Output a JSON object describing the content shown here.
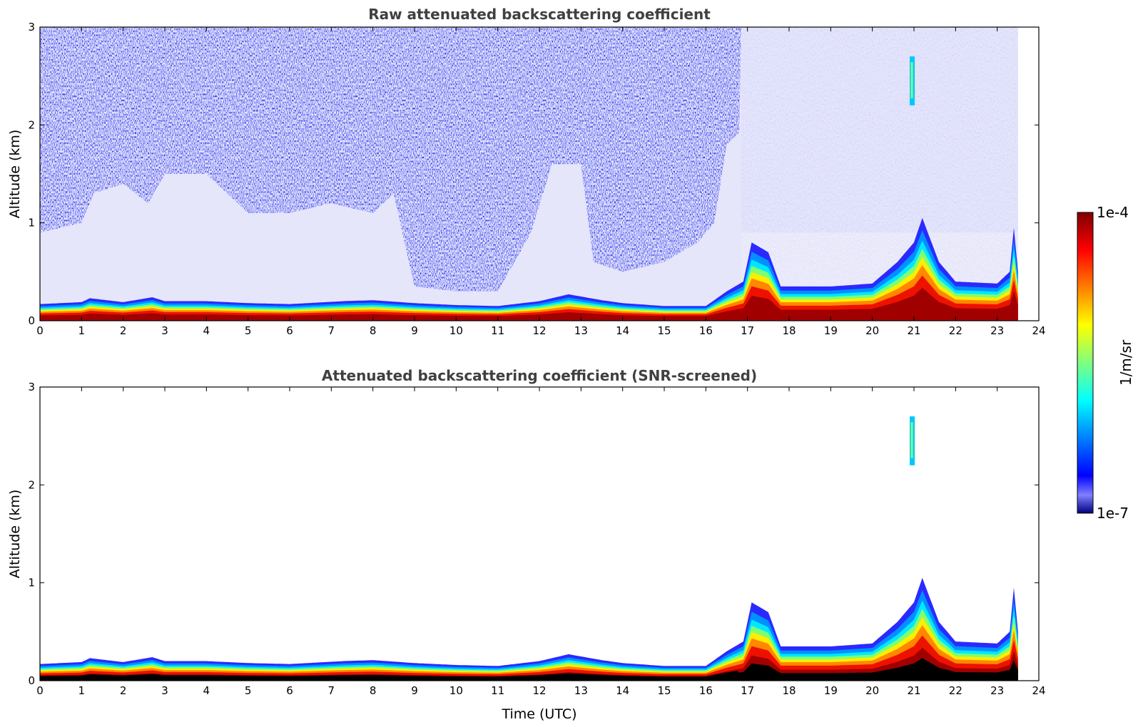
{
  "chart_data": [
    {
      "type": "heatmap",
      "title": "Raw attenuated backscattering coefficient",
      "xlabel": "",
      "ylabel": "Altitude (km)",
      "xlim": [
        0,
        24
      ],
      "ylim": [
        0,
        3
      ],
      "x_ticks": [
        "0",
        "1",
        "2",
        "3",
        "4",
        "5",
        "6",
        "7",
        "8",
        "9",
        "10",
        "11",
        "12",
        "13",
        "14",
        "15",
        "16",
        "17",
        "18",
        "19",
        "20",
        "21",
        "22",
        "23",
        "24"
      ],
      "y_ticks": [
        "0",
        "1",
        "2",
        "3"
      ],
      "scale": "log",
      "color_range": [
        1e-07,
        0.0001
      ],
      "layers": {
        "boundary_layer_top_km": [
          [
            0,
            0.17
          ],
          [
            1,
            0.19
          ],
          [
            1.2,
            0.23
          ],
          [
            2,
            0.19
          ],
          [
            2.7,
            0.24
          ],
          [
            3,
            0.2
          ],
          [
            4,
            0.2
          ],
          [
            5,
            0.18
          ],
          [
            6,
            0.17
          ],
          [
            7.3,
            0.2
          ],
          [
            8,
            0.21
          ],
          [
            9,
            0.18
          ],
          [
            10,
            0.16
          ],
          [
            11,
            0.15
          ],
          [
            12,
            0.2
          ],
          [
            12.7,
            0.27
          ],
          [
            13.5,
            0.21
          ],
          [
            14,
            0.18
          ],
          [
            15,
            0.15
          ],
          [
            16,
            0.15
          ],
          [
            16.5,
            0.3
          ],
          [
            16.9,
            0.4
          ],
          [
            17.1,
            0.8
          ],
          [
            17.5,
            0.7
          ],
          [
            17.8,
            0.35
          ],
          [
            19,
            0.35
          ],
          [
            20,
            0.38
          ],
          [
            20.6,
            0.6
          ],
          [
            21,
            0.8
          ],
          [
            21.2,
            1.05
          ],
          [
            21.6,
            0.6
          ],
          [
            22,
            0.4
          ],
          [
            23,
            0.38
          ],
          [
            23.3,
            0.5
          ],
          [
            23.4,
            0.95
          ],
          [
            23.5,
            0.5
          ]
        ],
        "high_cloud": {
          "time": 20.95,
          "altitude_km": [
            2.2,
            2.7
          ]
        },
        "data_end_time": 23.5
      }
    },
    {
      "type": "heatmap",
      "title": "Attenuated backscattering coefficient (SNR-screened)",
      "xlabel": "Time (UTC)",
      "ylabel": "Altitude (km)",
      "xlim": [
        0,
        24
      ],
      "ylim": [
        0,
        3
      ],
      "x_ticks": [
        "0",
        "1",
        "2",
        "3",
        "4",
        "5",
        "6",
        "7",
        "8",
        "9",
        "10",
        "11",
        "12",
        "13",
        "14",
        "15",
        "16",
        "17",
        "18",
        "19",
        "20",
        "21",
        "22",
        "23",
        "24"
      ],
      "y_ticks": [
        "0",
        "1",
        "2",
        "3"
      ],
      "scale": "log",
      "color_range": [
        1e-07,
        0.0001
      ]
    }
  ],
  "colorbar": {
    "max_label": "1e-4",
    "min_label": "1e-7",
    "unit_label": "1/m/sr",
    "colormap": "jet",
    "stops": [
      "#00007f",
      "#0000ff",
      "#007fff",
      "#00ffff",
      "#7fff7f",
      "#ffff00",
      "#ff7f00",
      "#ff0000",
      "#7f0000"
    ],
    "background_color": "#e6e6fa"
  }
}
